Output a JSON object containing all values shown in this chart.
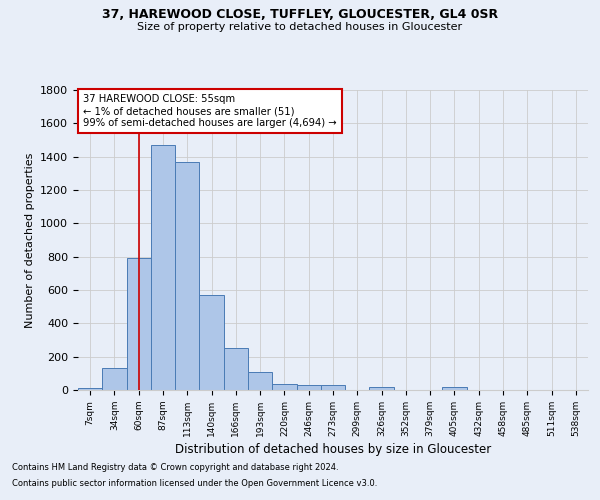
{
  "title1": "37, HAREWOOD CLOSE, TUFFLEY, GLOUCESTER, GL4 0SR",
  "title2": "Size of property relative to detached houses in Gloucester",
  "xlabel": "Distribution of detached houses by size in Gloucester",
  "ylabel": "Number of detached properties",
  "bin_labels": [
    "7sqm",
    "34sqm",
    "60sqm",
    "87sqm",
    "113sqm",
    "140sqm",
    "166sqm",
    "193sqm",
    "220sqm",
    "246sqm",
    "273sqm",
    "299sqm",
    "326sqm",
    "352sqm",
    "379sqm",
    "405sqm",
    "432sqm",
    "458sqm",
    "485sqm",
    "511sqm",
    "538sqm"
  ],
  "bar_values": [
    10,
    130,
    790,
    1470,
    1370,
    570,
    250,
    110,
    35,
    30,
    30,
    0,
    20,
    0,
    0,
    20,
    0,
    0,
    0,
    0,
    0
  ],
  "bar_color": "#aec6e8",
  "bar_edge_color": "#4a7bb5",
  "grid_color": "#cccccc",
  "annotation_box_text": "37 HAREWOOD CLOSE: 55sqm\n← 1% of detached houses are smaller (51)\n99% of semi-detached houses are larger (4,694) →",
  "annotation_box_color": "#ffffff",
  "annotation_box_edge_color": "#cc0000",
  "annotation_line_color": "#cc0000",
  "ylim": [
    0,
    1800
  ],
  "yticks": [
    0,
    200,
    400,
    600,
    800,
    1000,
    1200,
    1400,
    1600,
    1800
  ],
  "footer1": "Contains HM Land Registry data © Crown copyright and database right 2024.",
  "footer2": "Contains public sector information licensed under the Open Government Licence v3.0.",
  "bg_color": "#e8eef8"
}
